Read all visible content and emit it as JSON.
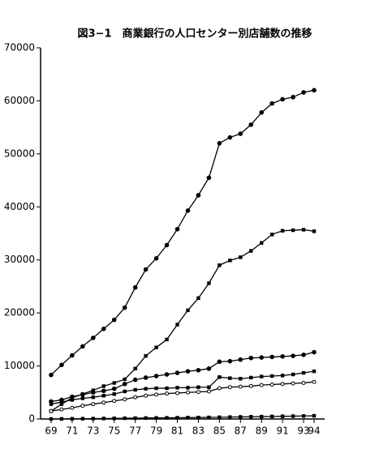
{
  "chart_data": {
    "type": "line",
    "title": "図3−1　商業銀行の人口センター別店舗数の推移",
    "x": [
      69,
      70,
      71,
      72,
      73,
      74,
      75,
      76,
      77,
      78,
      79,
      80,
      81,
      82,
      83,
      84,
      85,
      86,
      87,
      88,
      89,
      90,
      91,
      92,
      93,
      94
    ],
    "series": [
      {
        "color": "#000000",
        "values": [
          8300,
          10200,
          12000,
          13700,
          15300,
          17000,
          18700,
          21000,
          24800,
          28200,
          30300,
          32800,
          35800,
          39300,
          42200,
          45500,
          52000,
          53100,
          53800,
          55500,
          57800,
          59500,
          60300,
          60700,
          61600,
          62000
        ]
      },
      {
        "color": "#000000",
        "values": [
          1500,
          2800,
          4000,
          4700,
          5400,
          6200,
          6800,
          7500,
          9500,
          11900,
          13500,
          15000,
          17800,
          20500,
          22800,
          25600,
          29000,
          29900,
          30500,
          31700,
          33200,
          34800,
          35500,
          35600,
          35700,
          35400
        ]
      },
      {
        "color": "#000000",
        "values": [
          3300,
          3600,
          4200,
          4600,
          5000,
          5300,
          5700,
          6600,
          7400,
          7800,
          8100,
          8400,
          8700,
          9000,
          9200,
          9500,
          10800,
          10900,
          11200,
          11500,
          11600,
          11700,
          11800,
          11900,
          12100,
          12600
        ]
      },
      {
        "color": "#000000",
        "values": [
          2800,
          3200,
          3600,
          3900,
          4100,
          4400,
          4700,
          5200,
          5500,
          5700,
          5800,
          5800,
          5900,
          5900,
          6000,
          6000,
          7900,
          7700,
          7600,
          7800,
          8000,
          8100,
          8200,
          8400,
          8700,
          9000
        ]
      },
      {
        "color": "#000000",
        "values": [
          1500,
          1800,
          2100,
          2500,
          2800,
          3100,
          3400,
          3700,
          4100,
          4400,
          4600,
          4800,
          4900,
          5000,
          5100,
          5200,
          5800,
          6000,
          6100,
          6200,
          6400,
          6500,
          6600,
          6700,
          6800,
          7000
        ]
      },
      {
        "color": "#000000",
        "values": [
          0,
          20,
          40,
          60,
          80,
          100,
          120,
          140,
          160,
          180,
          200,
          220,
          240,
          260,
          280,
          300,
          330,
          360,
          390,
          420,
          450,
          480,
          510,
          540,
          570,
          600
        ]
      }
    ],
    "xlim": [
      68,
      95
    ],
    "xticks": [
      69,
      71,
      73,
      75,
      77,
      79,
      81,
      83,
      85,
      87,
      89,
      91,
      93,
      94
    ],
    "ylim": [
      0,
      70000
    ],
    "yticks": [
      0,
      10000,
      20000,
      30000,
      40000,
      50000,
      60000,
      70000
    ]
  }
}
